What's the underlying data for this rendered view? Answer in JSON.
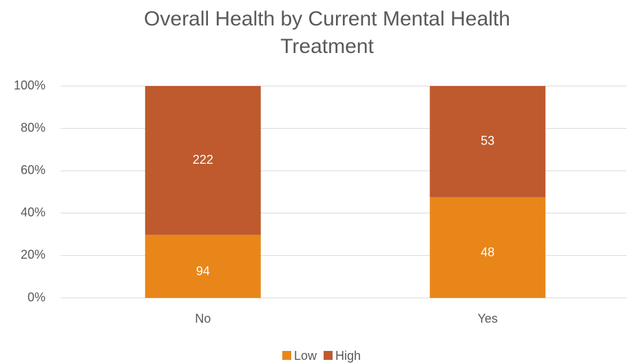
{
  "chart_data": {
    "type": "bar",
    "stacking": "percent",
    "title": "Overall Health by Current Mental Health Treatment",
    "categories": [
      "No",
      "Yes"
    ],
    "series": [
      {
        "name": "Low",
        "color": "#e8861a",
        "values": [
          94,
          48
        ]
      },
      {
        "name": "High",
        "color": "#be5a2e",
        "values": [
          222,
          53
        ]
      }
    ],
    "ylim": [
      0,
      100
    ],
    "yticks": [
      {
        "value": 0,
        "label": "0%"
      },
      {
        "value": 20,
        "label": "20%"
      },
      {
        "value": 40,
        "label": "40%"
      },
      {
        "value": 60,
        "label": "60%"
      },
      {
        "value": 80,
        "label": "80%"
      },
      {
        "value": 100,
        "label": "100%"
      }
    ],
    "grid": true,
    "legend": "bottom"
  }
}
